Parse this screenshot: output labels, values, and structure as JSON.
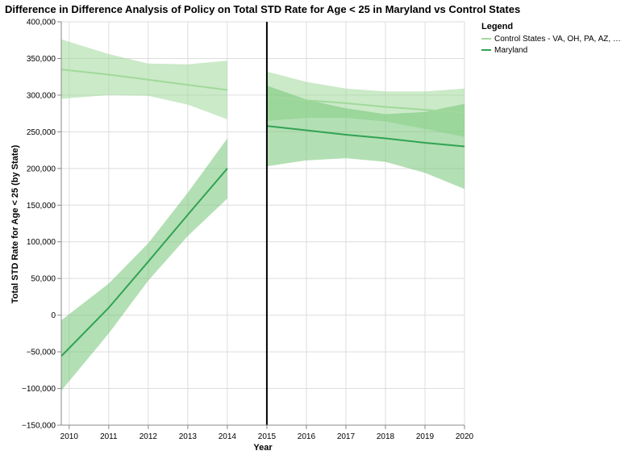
{
  "chart_data": {
    "type": "line",
    "title": "Difference in Difference Analysis of Policy on Total STD Rate for Age < 25 in Maryland vs Control States",
    "xlabel": "Year",
    "ylabel": "Total STD Rate for Age < 25 (by State)",
    "xlim": [
      2009.8,
      2020
    ],
    "ylim": [
      -150000,
      400000
    ],
    "x_ticks": [
      2010,
      2011,
      2012,
      2013,
      2014,
      2015,
      2016,
      2017,
      2018,
      2019,
      2020
    ],
    "x_tick_labels": [
      "2010",
      "2011",
      "2012",
      "2013",
      "2014",
      "2015",
      "2016",
      "2017",
      "2018",
      "2019",
      "2020"
    ],
    "y_ticks": [
      -150000,
      -100000,
      -50000,
      0,
      50000,
      100000,
      150000,
      200000,
      250000,
      300000,
      350000,
      400000
    ],
    "y_tick_labels": [
      "−150,000",
      "−100,000",
      "−50,000",
      "0",
      "50,000",
      "100,000",
      "150,000",
      "200,000",
      "250,000",
      "300,000",
      "350,000",
      "400,000"
    ],
    "grid": true,
    "policy_line_x": 2015,
    "legend": {
      "title": "Legend",
      "placement": "top-right",
      "entries": [
        {
          "label": "Control States - VA, OH, PA, AZ, …",
          "color": "#a1d99b"
        },
        {
          "label": "Maryland",
          "color": "#31a354"
        }
      ]
    },
    "series": [
      {
        "name": "Control States - VA, OH, PA, AZ, …",
        "color": "#a1d99b",
        "band_color": "#a1d99b",
        "segments": [
          {
            "x": [
              2009.8,
              2011,
              2012,
              2013,
              2014
            ],
            "y": [
              335000,
              328000,
              321000,
              314000,
              307000
            ],
            "upper": [
              376000,
              356000,
              343000,
              342000,
              347000
            ],
            "lower": [
              295000,
              300000,
              299000,
              287000,
              267000
            ]
          },
          {
            "x": [
              2015,
              2016,
              2017,
              2018,
              2019,
              2020
            ],
            "y": [
              298000,
              293000,
              289000,
              284000,
              280000,
              276000
            ],
            "upper": [
              332000,
              318000,
              309000,
              305000,
              305000,
              309000
            ],
            "lower": [
              265000,
              269000,
              269000,
              264000,
              254000,
              243000
            ]
          }
        ]
      },
      {
        "name": "Maryland",
        "color": "#31a354",
        "band_color": "#74c476",
        "segments": [
          {
            "x": [
              2009.8,
              2011,
              2012,
              2013,
              2014
            ],
            "y": [
              -56000,
              10000,
              73000,
              137000,
              200000
            ],
            "upper": [
              -7000,
              43000,
              98000,
              167000,
              241000
            ],
            "lower": [
              -103000,
              -25000,
              47000,
              108000,
              159000
            ]
          },
          {
            "x": [
              2015,
              2016,
              2017,
              2018,
              2019,
              2020
            ],
            "y": [
              258000,
              252000,
              246000,
              241000,
              235000,
              230000
            ],
            "upper": [
              313000,
              294000,
              282000,
              274000,
              277000,
              288000
            ],
            "lower": [
              203000,
              211000,
              214000,
              209000,
              194000,
              172000
            ]
          }
        ]
      }
    ]
  }
}
